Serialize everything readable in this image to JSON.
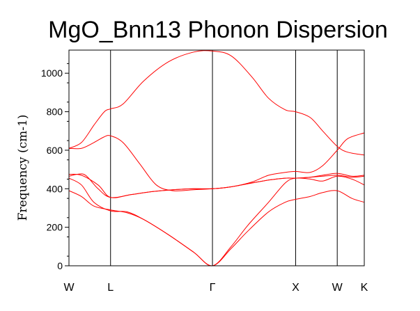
{
  "chart_data": {
    "type": "line",
    "title": "MgO_Bnn13 Phonon Dispersion",
    "xlabel": "",
    "ylabel": "Frequency (cm-1)",
    "ylim": [
      0,
      1120
    ],
    "yticks": [
      0,
      200,
      400,
      600,
      800,
      1000
    ],
    "xlim": [
      0,
      7.1
    ],
    "kpoints": [
      {
        "label": "W",
        "x": 0
      },
      {
        "label": "L",
        "x": 1.0
      },
      {
        "label": "Γ",
        "x": 3.45
      },
      {
        "label": "X",
        "x": 5.45
      },
      {
        "label": "W",
        "x": 6.45
      },
      {
        "label": "K",
        "x": 7.1
      }
    ],
    "grid": false,
    "colors": {
      "bands": "#ff0000",
      "axes": "#000000",
      "kline": "#000000"
    },
    "series": [
      {
        "x": [
          0,
          0.3,
          0.6,
          0.85,
          1.0,
          1.3,
          1.8,
          2.4,
          3.0,
          3.45,
          3.9,
          4.4,
          4.8,
          5.2,
          5.45,
          5.8,
          6.1,
          6.45,
          6.7,
          7.1
        ],
        "y": [
          610,
          640,
          730,
          800,
          815,
          840,
          960,
          1060,
          1110,
          1115,
          1090,
          980,
          870,
          810,
          800,
          770,
          700,
          620,
          590,
          575
        ]
      },
      {
        "x": [
          0,
          0.3,
          0.6,
          0.85,
          1.0,
          1.3,
          1.7,
          2.1,
          2.5,
          3.0,
          3.45,
          3.9,
          4.4,
          4.8,
          5.2,
          5.45,
          5.8,
          6.1,
          6.45,
          6.7,
          7.1
        ],
        "y": [
          610,
          610,
          640,
          670,
          675,
          640,
          530,
          420,
          390,
          395,
          400,
          410,
          435,
          470,
          485,
          490,
          485,
          520,
          600,
          660,
          690
        ]
      },
      {
        "x": [
          0,
          0.3,
          0.7,
          1.0,
          1.5,
          2.0,
          2.5,
          3.0,
          3.45,
          3.9,
          4.4,
          4.8,
          5.2,
          5.45,
          5.8,
          6.1,
          6.45,
          6.8,
          7.1
        ],
        "y": [
          475,
          470,
          420,
          355,
          370,
          385,
          395,
          400,
          400,
          410,
          430,
          445,
          455,
          455,
          460,
          470,
          480,
          465,
          470
        ]
      },
      {
        "x": [
          0,
          0.2,
          0.4,
          0.7,
          1.0,
          1.5,
          2.0,
          2.5,
          3.0,
          3.45,
          3.9,
          4.4,
          4.8,
          5.2,
          5.45,
          5.8,
          6.1,
          6.45,
          6.8,
          7.1
        ],
        "y": [
          465,
          475,
          470,
          400,
          355,
          370,
          385,
          395,
          400,
          400,
          410,
          430,
          445,
          455,
          455,
          460,
          465,
          470,
          460,
          465
        ]
      },
      {
        "x": [
          0,
          0.3,
          0.6,
          1.0,
          1.4,
          1.8,
          2.4,
          3.0,
          3.45,
          3.9,
          4.3,
          4.8,
          5.2,
          5.45,
          5.8,
          6.1,
          6.45,
          6.8,
          7.1
        ],
        "y": [
          455,
          420,
          330,
          285,
          280,
          240,
          160,
          70,
          0,
          100,
          210,
          330,
          430,
          455,
          450,
          440,
          465,
          450,
          420
        ]
      },
      {
        "x": [
          0,
          0.3,
          0.6,
          1.0,
          1.4,
          1.8,
          2.4,
          3.0,
          3.45,
          3.9,
          4.3,
          4.8,
          5.2,
          5.45,
          5.8,
          6.1,
          6.45,
          6.8,
          7.1
        ],
        "y": [
          390,
          360,
          310,
          290,
          275,
          240,
          160,
          70,
          0,
          90,
          180,
          280,
          330,
          345,
          360,
          380,
          390,
          350,
          330
        ]
      }
    ]
  }
}
